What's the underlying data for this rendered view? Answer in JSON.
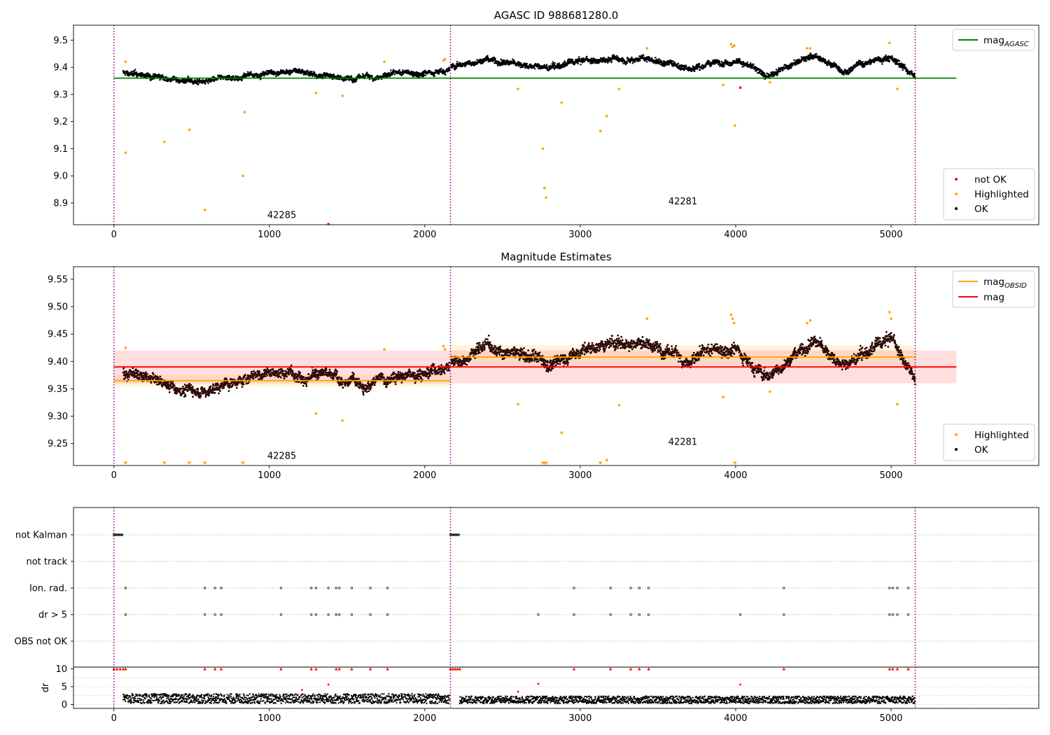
{
  "chart_data": [
    {
      "type": "scatter",
      "title": "AGASC ID 988681280.0",
      "xlim": [
        -260,
        5950
      ],
      "ylim": [
        8.82,
        9.555
      ],
      "x_ticks": [
        0,
        1000,
        2000,
        3000,
        4000,
        5000
      ],
      "y_ticks": [
        8.9,
        9.0,
        9.1,
        9.2,
        9.3,
        9.4,
        9.5
      ],
      "y_tick_labels": [
        "8.9",
        "9.0",
        "9.1",
        "9.2",
        "9.3",
        "9.4",
        "9.5"
      ],
      "obsid_boundaries": [
        0,
        2165,
        5155
      ],
      "obsid_labels": [
        {
          "text": "42285",
          "x": 1080,
          "y": 8.845
        },
        {
          "text": "42281",
          "x": 3660,
          "y": 8.895
        }
      ],
      "reference_lines": [
        {
          "name": "mag",
          "subscript": "AGASC",
          "y": 9.36,
          "x_range": [
            0,
            5420
          ],
          "color": "#008000"
        }
      ],
      "series": [
        {
          "name": "OK",
          "color": "#000000",
          "segments": [
            {
              "x0": 60,
              "x1": 2160,
              "base": [
                [
                  60,
                  9.38
                ],
                [
                  300,
                  9.36
                ],
                [
                  600,
                  9.345
                ],
                [
                  900,
                  9.375
                ],
                [
                  1200,
                  9.385
                ],
                [
                  1500,
                  9.36
                ],
                [
                  1800,
                  9.37
                ],
                [
                  2160,
                  9.395
                ]
              ],
              "spread": 0.035
            },
            {
              "x0": 2170,
              "x1": 5155,
              "base": [
                [
                  2170,
                  9.4
                ],
                [
                  2400,
                  9.43
                ],
                [
                  2800,
                  9.395
                ],
                [
                  3000,
                  9.42
                ],
                [
                  3400,
                  9.44
                ],
                [
                  3700,
                  9.4
                ],
                [
                  4000,
                  9.43
                ],
                [
                  4200,
                  9.37
                ],
                [
                  4500,
                  9.44
                ],
                [
                  4700,
                  9.39
                ],
                [
                  5000,
                  9.44
                ],
                [
                  5155,
                  9.37
                ]
              ],
              "spread": 0.04
            }
          ]
        },
        {
          "name": "Highlighted",
          "color": "#ffa500",
          "points": [
            [
              75,
              9.42
            ],
            [
              75,
              9.085
            ],
            [
              325,
              9.125
            ],
            [
              485,
              9.17
            ],
            [
              585,
              8.875
            ],
            [
              830,
              9.0
            ],
            [
              840,
              9.235
            ],
            [
              1300,
              9.305
            ],
            [
              1470,
              9.295
            ],
            [
              1740,
              9.42
            ],
            [
              2120,
              9.425
            ],
            [
              2130,
              9.43
            ],
            [
              2600,
              9.32
            ],
            [
              2760,
              9.1
            ],
            [
              2770,
              8.955
            ],
            [
              2780,
              8.92
            ],
            [
              2880,
              9.27
            ],
            [
              3130,
              9.165
            ],
            [
              3170,
              9.22
            ],
            [
              3250,
              9.32
            ],
            [
              3430,
              9.47
            ],
            [
              3920,
              9.335
            ],
            [
              3970,
              9.485
            ],
            [
              3980,
              9.475
            ],
            [
              3990,
              9.48
            ],
            [
              3995,
              9.185
            ],
            [
              4220,
              9.345
            ],
            [
              4460,
              9.47
            ],
            [
              4480,
              9.47
            ],
            [
              4990,
              9.49
            ],
            [
              5040,
              9.32
            ]
          ]
        },
        {
          "name": "not OK",
          "color": "#ff0000",
          "points": [
            [
              1380,
              8.822
            ],
            [
              4030,
              9.325
            ]
          ]
        }
      ],
      "legend_upper": [
        {
          "label": "mag",
          "subscript": "AGASC",
          "color": "#008000",
          "marker": "line"
        }
      ],
      "legend_lower": [
        {
          "label": "not OK",
          "color": "#ff0000",
          "marker": "dot"
        },
        {
          "label": "Highlighted",
          "color": "#ffa500",
          "marker": "dot"
        },
        {
          "label": "OK",
          "color": "#000000",
          "marker": "dot"
        }
      ]
    },
    {
      "type": "scatter",
      "title": "Magnitude Estimates",
      "xlim": [
        -260,
        5950
      ],
      "ylim": [
        9.21,
        9.573
      ],
      "x_ticks": [
        0,
        1000,
        2000,
        3000,
        4000,
        5000
      ],
      "y_ticks": [
        9.25,
        9.3,
        9.35,
        9.4,
        9.45,
        9.5,
        9.55
      ],
      "y_tick_labels": [
        "9.25",
        "9.30",
        "9.35",
        "9.40",
        "9.45",
        "9.50",
        "9.55"
      ],
      "obsid_boundaries": [
        0,
        2165,
        5155
      ],
      "obsid_labels": [
        {
          "text": "42285",
          "x": 1080,
          "y": 9.222
        },
        {
          "text": "42281",
          "x": 3660,
          "y": 9.248
        }
      ],
      "reference_lines": [
        {
          "name": "mag",
          "y": 9.39,
          "band": [
            9.36,
            9.42
          ],
          "x_range": [
            0,
            5420
          ],
          "color": "#ff0000"
        },
        {
          "name": "mag",
          "subscript": "OBSID",
          "y": 9.365,
          "band": [
            9.355,
            9.375
          ],
          "x_range": [
            0,
            2165
          ],
          "color": "#ffa500"
        },
        {
          "name": "mag",
          "subscript": "OBSID",
          "y": 9.408,
          "band": [
            9.393,
            9.43
          ],
          "x_range": [
            2165,
            5155
          ],
          "color": "#ffa500"
        }
      ],
      "series": [
        {
          "name": "OK",
          "color": "#000000",
          "segments": [
            {
              "x0": 60,
              "x1": 2160,
              "base": [
                [
                  60,
                  9.38
                ],
                [
                  300,
                  9.36
                ],
                [
                  600,
                  9.345
                ],
                [
                  900,
                  9.375
                ],
                [
                  1200,
                  9.385
                ],
                [
                  1500,
                  9.36
                ],
                [
                  1800,
                  9.37
                ],
                [
                  2160,
                  9.395
                ]
              ],
              "spread": 0.035
            },
            {
              "x0": 2170,
              "x1": 5155,
              "base": [
                [
                  2170,
                  9.4
                ],
                [
                  2400,
                  9.43
                ],
                [
                  2800,
                  9.395
                ],
                [
                  3000,
                  9.42
                ],
                [
                  3400,
                  9.44
                ],
                [
                  3700,
                  9.4
                ],
                [
                  4000,
                  9.43
                ],
                [
                  4200,
                  9.37
                ],
                [
                  4500,
                  9.44
                ],
                [
                  4700,
                  9.39
                ],
                [
                  5000,
                  9.44
                ],
                [
                  5155,
                  9.37
                ]
              ],
              "spread": 0.04
            }
          ]
        },
        {
          "name": "Highlighted",
          "color": "#ffa500",
          "points": [
            [
              75,
              9.425
            ],
            [
              1300,
              9.305
            ],
            [
              1470,
              9.292
            ],
            [
              1740,
              9.422
            ],
            [
              2120,
              9.428
            ],
            [
              2130,
              9.422
            ],
            [
              2600,
              9.322
            ],
            [
              2880,
              9.27
            ],
            [
              3170,
              9.22
            ],
            [
              3250,
              9.32
            ],
            [
              3430,
              9.478
            ],
            [
              3920,
              9.335
            ],
            [
              3970,
              9.485
            ],
            [
              3980,
              9.478
            ],
            [
              3990,
              9.47
            ],
            [
              4220,
              9.345
            ],
            [
              4460,
              9.47
            ],
            [
              4480,
              9.475
            ],
            [
              4990,
              9.49
            ],
            [
              5000,
              9.478
            ],
            [
              5040,
              9.322
            ]
          ]
        },
        {
          "name": "Highlighted (below range)",
          "color": "#ffa500",
          "markers": "triangle-down",
          "x": [
            75,
            325,
            485,
            585,
            830,
            2760,
            2770,
            2780,
            3130,
            3995
          ]
        }
      ],
      "legend_upper": [
        {
          "label": "mag",
          "subscript": "OBSID",
          "color": "#ffa500",
          "marker": "line"
        },
        {
          "label": "mag",
          "color": "#ff0000",
          "marker": "line"
        }
      ],
      "legend_lower": [
        {
          "label": "Highlighted",
          "color": "#ffa500",
          "marker": "dot"
        },
        {
          "label": "OK",
          "color": "#000000",
          "marker": "dot"
        }
      ]
    },
    {
      "type": "scatter",
      "title": "",
      "xlim": [
        -260,
        5950
      ],
      "x_ticks": [
        0,
        1000,
        2000,
        3000,
        4000,
        5000
      ],
      "obsid_boundaries": [
        0,
        2165,
        5155
      ],
      "flag_rows": [
        "not Kalman",
        "not track",
        "Ion. rad.",
        "dr > 5",
        "OBS not OK"
      ],
      "flag_points": {
        "not Kalman": [
          [
            0,
            55
          ],
          [
            2165,
            2220
          ]
        ],
        "not track": [],
        "Ion. rad.": [
          75,
          585,
          650,
          690,
          1075,
          1270,
          1300,
          1380,
          1430,
          1450,
          1530,
          1650,
          1760,
          2960,
          3195,
          3325,
          3380,
          3440,
          4310,
          4990,
          5010,
          5040,
          5110
        ],
        "dr > 5": [
          75,
          585,
          650,
          690,
          1075,
          1270,
          1300,
          1380,
          1430,
          1450,
          1530,
          1650,
          1760,
          2730,
          2960,
          3195,
          3325,
          3380,
          3440,
          4030,
          4310,
          4990,
          5010,
          5040,
          5110
        ],
        "OBS not OK": []
      },
      "dr": {
        "ylabel": "dr",
        "ylim": [
          -0.5,
          10.5
        ],
        "y_ticks": [
          0,
          5,
          10
        ],
        "clip_value": 10,
        "clipped_x": [
          0,
          20,
          40,
          60,
          75,
          585,
          650,
          690,
          1075,
          1270,
          1300,
          1430,
          1450,
          1530,
          1650,
          1760,
          2165,
          2180,
          2195,
          2210,
          2225,
          2960,
          3195,
          3325,
          3380,
          3440,
          4310,
          4990,
          5010,
          5040,
          5110
        ],
        "outliers": [
          [
            1380,
            5.6
          ],
          [
            2730,
            5.8
          ],
          [
            4030,
            5.6
          ],
          [
            2600,
            3.6
          ],
          [
            1210,
            4.1
          ]
        ],
        "ok_range": [
          0.3,
          3.0
        ],
        "segments": [
          [
            60,
            2160
          ],
          [
            2225,
            5155
          ]
        ]
      }
    }
  ]
}
